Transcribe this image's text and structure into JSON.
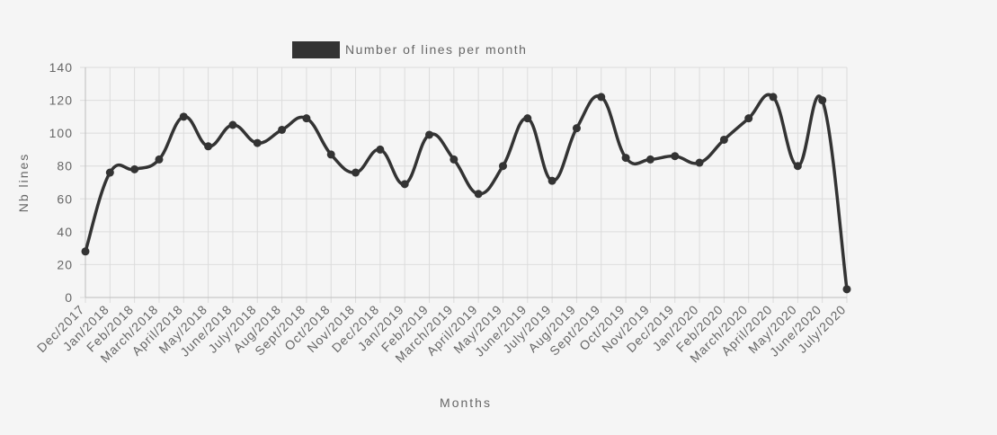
{
  "chart_data": {
    "type": "line",
    "xlabel": "Months",
    "ylabel": "Nb lines",
    "ylim": [
      0,
      140
    ],
    "yticks": [
      0,
      20,
      40,
      60,
      80,
      100,
      120,
      140
    ],
    "grid": true,
    "legend_position": "top",
    "categories": [
      "Dec/2017",
      "Jan/2018",
      "Feb/2018",
      "March/2018",
      "April/2018",
      "May/2018",
      "June/2018",
      "July/2018",
      "Aug/2018",
      "Sept/2018",
      "Oct/2018",
      "Nov/2018",
      "Dec/2018",
      "Jan/2019",
      "Feb/2019",
      "March/2019",
      "April/2019",
      "May/2019",
      "June/2019",
      "July/2019",
      "Aug/2019",
      "Sept/2019",
      "Oct/2019",
      "Nov/2019",
      "Dec/2019",
      "Jan/2020",
      "Feb/2020",
      "March/2020",
      "April/2020",
      "May/2020",
      "June/2020",
      "July/2020"
    ],
    "series": [
      {
        "name": "Number of lines per month",
        "color": "#333333",
        "values": [
          28,
          76,
          78,
          84,
          110,
          92,
          105,
          94,
          102,
          109,
          87,
          76,
          90,
          69,
          99,
          84,
          63,
          80,
          109,
          71,
          103,
          122,
          85,
          84,
          86,
          82,
          96,
          109,
          122,
          80,
          120,
          5
        ]
      }
    ]
  }
}
